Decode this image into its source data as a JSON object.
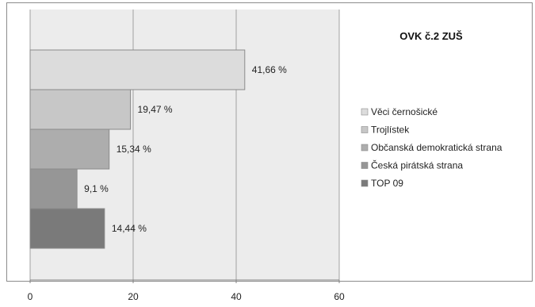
{
  "chart_data": {
    "type": "bar",
    "orientation": "horizontal",
    "title": "OVK č.2 ZUŠ",
    "xlabel": "",
    "ylabel": "",
    "xlim": [
      0,
      60
    ],
    "x_ticks": [
      0,
      20,
      40,
      60
    ],
    "grid": true,
    "legend_position": "right",
    "series": [
      {
        "name": "Věci černošické",
        "value": 41.66,
        "label": "41,66 %",
        "color": "#dcdcdc"
      },
      {
        "name": "Trojlístek",
        "value": 19.47,
        "label": "19,47 %",
        "color": "#c7c7c7"
      },
      {
        "name": "Občanská demokratická strana",
        "value": 15.34,
        "label": "15,34 %",
        "color": "#adadad"
      },
      {
        "name": "Česká pirátská strana",
        "value": 9.1,
        "label": "9,1 %",
        "color": "#969696"
      },
      {
        "name": "TOP 09",
        "value": 14.44,
        "label": "14,44 %",
        "color": "#7a7a7a"
      }
    ]
  }
}
